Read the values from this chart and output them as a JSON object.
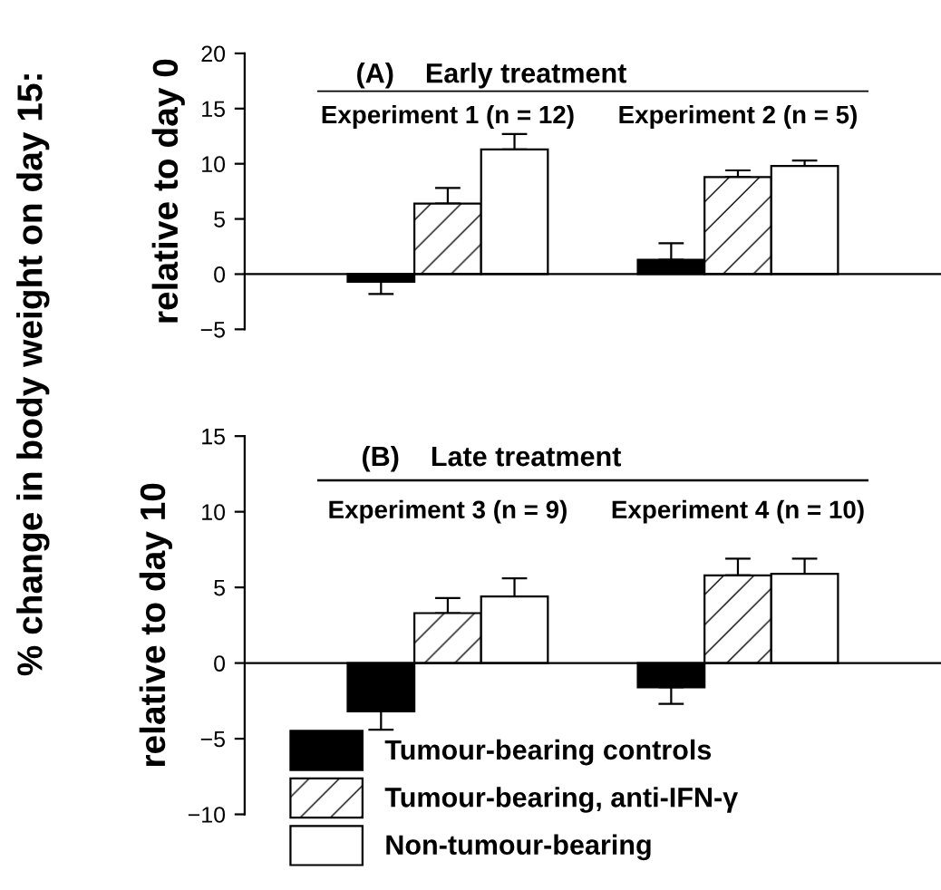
{
  "chart_data": [
    {
      "type": "bar",
      "title": "(A)    Early treatment",
      "ylabel": "relative to day 0",
      "annotations": [
        "% change in body weight on day 15:"
      ],
      "categories": [
        "Experiment 1 (n = 12)",
        "Experiment 2 (n = 5)"
      ],
      "series": [
        {
          "color": "#000000",
          "values": [
            -0.7,
            1.3
          ],
          "errors": [
            [
              -1.8,
              -0.7
            ],
            [
              1.3,
              2.8
            ]
          ]
        },
        {
          "color": "#ffffff",
          "values": [
            6.4,
            8.8
          ],
          "errors": [
            [
              6.4,
              7.8
            ],
            [
              8.8,
              9.4
            ]
          ]
        },
        {
          "color": "#ffffff",
          "values": [
            11.3,
            9.8
          ],
          "errors": [
            [
              11.3,
              12.7
            ],
            [
              9.8,
              10.3
            ]
          ]
        }
      ],
      "ref_lines": [
        {
          "axis": "y",
          "value": 0
        }
      ],
      "ylim": [
        -5,
        20
      ],
      "yticks": [
        -5,
        0,
        5,
        10,
        15,
        20
      ],
      "tick_labels": "y"
    },
    {
      "type": "bar",
      "title": "(B)    Late treatment",
      "ylabel": "relative to day 10",
      "categories": [
        "Experiment 3 (n = 9)",
        "Experiment 4 (n = 10)"
      ],
      "series": [
        {
          "name": "Tumour-bearing controls",
          "color": "#000000",
          "values": [
            -3.2,
            -1.6
          ],
          "errors": [
            [
              -4.4,
              -3.2
            ],
            [
              -2.7,
              -1.6
            ]
          ]
        },
        {
          "name": "Tumour-bearing, anti-IFN-γ",
          "color": "#ffffff",
          "values": [
            3.3,
            5.8
          ],
          "errors": [
            [
              3.3,
              4.3
            ],
            [
              5.8,
              6.9
            ]
          ]
        },
        {
          "name": "Non-tumour-bearing",
          "color": "#ffffff",
          "values": [
            4.4,
            5.9
          ],
          "errors": [
            [
              4.4,
              5.6
            ],
            [
              5.9,
              6.9
            ]
          ]
        }
      ],
      "ref_lines": [
        {
          "axis": "y",
          "value": 0
        }
      ],
      "ylim": [
        -10,
        15
      ],
      "yticks": [
        -10,
        -5,
        0,
        5,
        10,
        15
      ],
      "legend": "bottom left",
      "tick_labels": "y"
    }
  ]
}
